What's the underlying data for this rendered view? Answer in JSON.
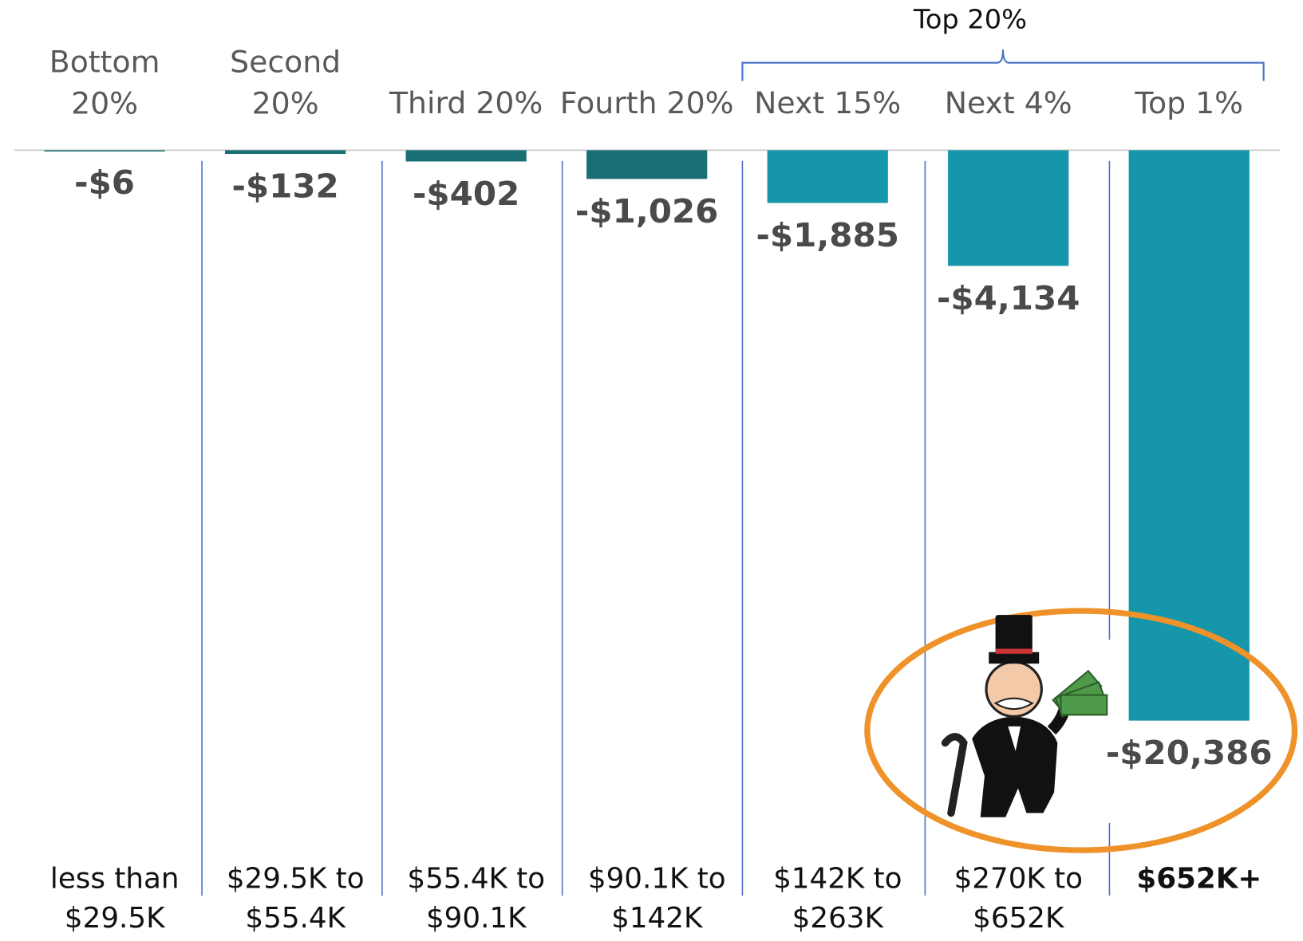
{
  "chart_data": {
    "type": "bar",
    "categories": [
      "Bottom 20%",
      "Second 20%",
      "Third 20%",
      "Fourth 20%",
      "Next 15%",
      "Next 4%",
      "Top 1%"
    ],
    "values": [
      -6,
      -132,
      -402,
      -1026,
      -1885,
      -4134,
      -20386
    ],
    "value_labels": [
      "-$6",
      "-$132",
      "-$402",
      "-$1,026",
      "-$1,885",
      "-$4,134",
      "-$20,386"
    ],
    "colors": [
      "#1a6f74",
      "#1a6f74",
      "#1a6f74",
      "#1a6f74",
      "#1596aa",
      "#1596aa",
      "#1596aa"
    ],
    "income_ranges": [
      "less than $29.5K",
      "$29.5K to $55.4K",
      "$55.4K to $90.1K",
      "$90.1K to $142K",
      "$142K to $263K",
      "$270K to $652K",
      "$652K+"
    ],
    "group_label": "Top 20%",
    "ylim": [
      -20386,
      0
    ]
  }
}
